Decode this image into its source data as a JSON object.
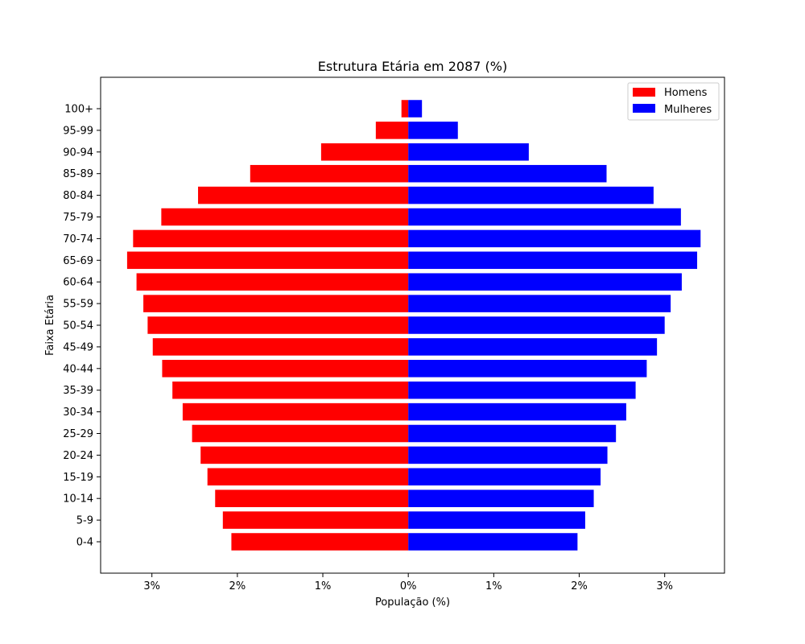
{
  "chart_data": {
    "type": "bar",
    "orientation": "horizontal",
    "title": "Estrutura Etária em 2087 (%)",
    "xlabel": "População (%)",
    "ylabel": "Faixa Etária",
    "xlim": [
      -3.6,
      3.7
    ],
    "x_ticks": [
      {
        "value": -3,
        "label": "3%"
      },
      {
        "value": -2,
        "label": "2%"
      },
      {
        "value": -1,
        "label": "1%"
      },
      {
        "value": 0,
        "label": "0%"
      },
      {
        "value": 1,
        "label": "1%"
      },
      {
        "value": 2,
        "label": "2%"
      },
      {
        "value": 3,
        "label": "3%"
      }
    ],
    "categories": [
      "0-4",
      "5-9",
      "10-14",
      "15-19",
      "20-24",
      "25-29",
      "30-34",
      "35-39",
      "40-44",
      "45-49",
      "50-54",
      "55-59",
      "60-64",
      "65-69",
      "70-74",
      "75-79",
      "80-84",
      "85-89",
      "90-94",
      "95-99",
      "100+"
    ],
    "series": [
      {
        "name": "Homens",
        "color": "#ff0000",
        "direction": "left",
        "values": [
          2.07,
          2.17,
          2.26,
          2.35,
          2.43,
          2.53,
          2.64,
          2.76,
          2.88,
          2.99,
          3.05,
          3.1,
          3.18,
          3.29,
          3.22,
          2.89,
          2.46,
          1.85,
          1.02,
          0.38,
          0.08
        ]
      },
      {
        "name": "Mulheres",
        "color": "#0000ff",
        "direction": "right",
        "values": [
          1.98,
          2.07,
          2.17,
          2.25,
          2.33,
          2.43,
          2.55,
          2.66,
          2.79,
          2.91,
          3.0,
          3.07,
          3.2,
          3.38,
          3.42,
          3.19,
          2.87,
          2.32,
          1.41,
          0.58,
          0.16
        ]
      }
    ],
    "grid": false,
    "legend_position": "top-right"
  }
}
